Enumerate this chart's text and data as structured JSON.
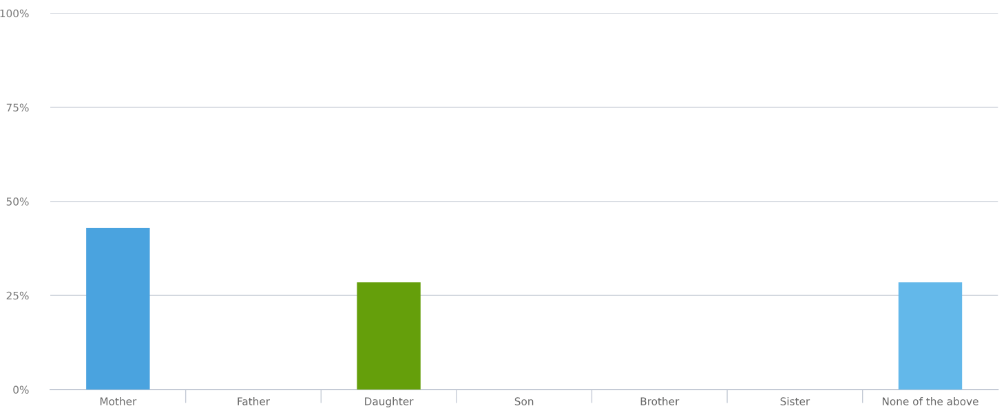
{
  "chart_data": {
    "type": "bar",
    "categories": [
      "Mother",
      "Father",
      "Daughter",
      "Son",
      "Brother",
      "Sister",
      "None of the above"
    ],
    "values": [
      43,
      0,
      28.5,
      0,
      0,
      0,
      28.5
    ],
    "colors": [
      "#4aa3df",
      "#4aa3df",
      "#659f0b",
      "#4aa3df",
      "#4aa3df",
      "#4aa3df",
      "#63b8ea"
    ],
    "ylim": [
      0,
      100
    ],
    "yticks": [
      {
        "value": 0,
        "label": "0%"
      },
      {
        "value": 25,
        "label": "25%"
      },
      {
        "value": 50,
        "label": "50%"
      },
      {
        "value": 75,
        "label": "75%"
      },
      {
        "value": 100,
        "label": "100%"
      }
    ],
    "grid": "y"
  }
}
